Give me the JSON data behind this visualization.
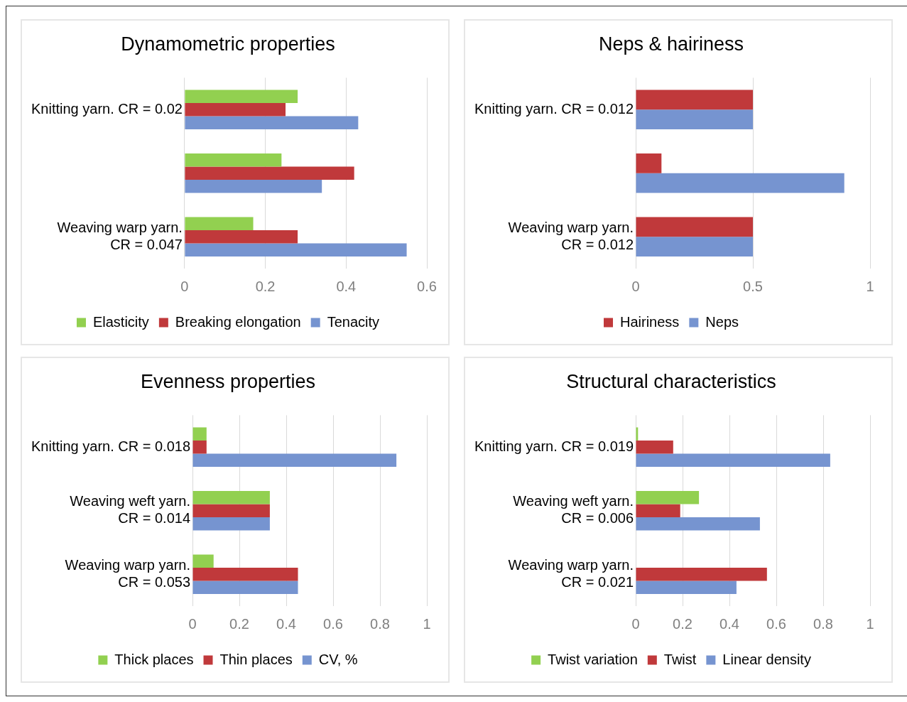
{
  "chart_data": [
    {
      "type": "bar",
      "orientation": "horizontal",
      "title": "Dynamometric properties",
      "categories": [
        "Knitting yarn. CR = 0.02",
        null,
        "Weaving warp yarn.\nCR = 0.047"
      ],
      "series": [
        {
          "name": "Elasticity",
          "color": "#92d050",
          "values": [
            0.28,
            0.24,
            0.17
          ]
        },
        {
          "name": "Breaking elongation",
          "color": "#c0393b",
          "values": [
            0.25,
            0.42,
            0.28
          ]
        },
        {
          "name": "Tenacity",
          "color": "#7694d0",
          "values": [
            0.43,
            0.34,
            0.55
          ]
        }
      ],
      "xlim": [
        0,
        0.6
      ],
      "xticks": [
        0,
        0.2,
        0.4,
        0.6
      ],
      "grid": "x",
      "legend": "bottom"
    },
    {
      "type": "bar",
      "orientation": "horizontal",
      "title": "Neps & hairiness",
      "categories": [
        "Knitting yarn. CR = 0.012",
        null,
        "Weaving warp yarn.\nCR = 0.012"
      ],
      "series": [
        {
          "name": "Hairiness",
          "color": "#c0393b",
          "values": [
            0.5,
            0.11,
            0.5
          ]
        },
        {
          "name": "Neps",
          "color": "#7694d0",
          "values": [
            0.5,
            0.89,
            0.5
          ]
        }
      ],
      "xlim": [
        0,
        1
      ],
      "xticks": [
        0,
        0.5,
        1
      ],
      "grid": "x",
      "legend": "bottom"
    },
    {
      "type": "bar",
      "orientation": "horizontal",
      "title": "Evenness properties",
      "categories": [
        "Knitting yarn. CR = 0.018",
        "Weaving weft yarn.\nCR = 0.014",
        "Weaving warp yarn.\nCR = 0.053"
      ],
      "series": [
        {
          "name": "Thick places",
          "color": "#92d050",
          "values": [
            0.06,
            0.33,
            0.09
          ]
        },
        {
          "name": "Thin places",
          "color": "#c0393b",
          "values": [
            0.06,
            0.33,
            0.45
          ]
        },
        {
          "name": "CV, %",
          "color": "#7694d0",
          "values": [
            0.87,
            0.33,
            0.45
          ]
        }
      ],
      "xlim": [
        0,
        1
      ],
      "xticks": [
        0,
        0.2,
        0.4,
        0.6,
        0.8,
        1
      ],
      "grid": "x",
      "legend": "bottom"
    },
    {
      "type": "bar",
      "orientation": "horizontal",
      "title": "Structural characteristics",
      "categories": [
        "Knitting yarn. CR = 0.019",
        "Weaving weft yarn.\nCR = 0.006",
        "Weaving warp yarn.\nCR = 0.021"
      ],
      "series": [
        {
          "name": "Twist variation",
          "color": "#92d050",
          "values": [
            0.01,
            0.27,
            0
          ]
        },
        {
          "name": "Twist",
          "color": "#c0393b",
          "values": [
            0.16,
            0.19,
            0.56
          ]
        },
        {
          "name": "Linear density",
          "color": "#7694d0",
          "values": [
            0.83,
            0.53,
            0.43
          ]
        }
      ],
      "xlim": [
        0,
        1
      ],
      "xticks": [
        0,
        0.2,
        0.4,
        0.6,
        0.8,
        1
      ],
      "grid": "x",
      "legend": "bottom"
    }
  ]
}
